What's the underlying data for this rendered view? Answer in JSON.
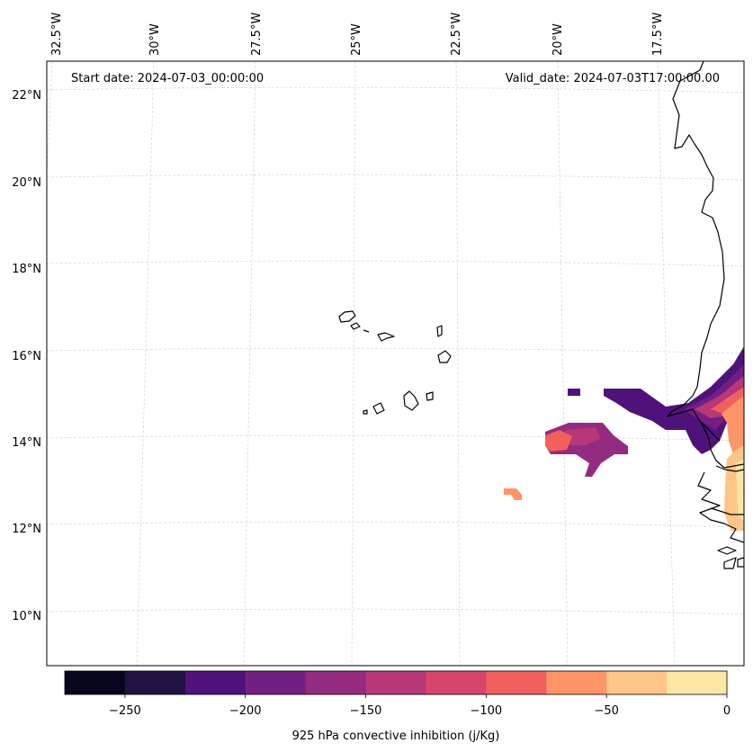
{
  "map": {
    "start_label": "Start date: 2024-07-03_00:00:00",
    "valid_label": "Valid_date: 2024-07-03T17:00:00.00",
    "lon_labels": [
      "32.5°W",
      "30°W",
      "27.5°W",
      "25°W",
      "22.5°W",
      "20°W",
      "17.5°W"
    ],
    "lat_labels": [
      "22°N",
      "20°N",
      "18°N",
      "16°N",
      "14°N",
      "12°N",
      "10°N"
    ],
    "gridline_color": "#d9d9d9",
    "coastline_color": "#000000"
  },
  "colorbar": {
    "label": "925 hPa convective inhibition (j/Kg)",
    "tick_labels": [
      "−250",
      "−200",
      "−150",
      "−100",
      "−50",
      "0"
    ],
    "bounds": [
      -275,
      -250,
      -225,
      -200,
      -175,
      -150,
      -125,
      -100,
      -75,
      -50,
      -25,
      0
    ],
    "colors": [
      "#07061c",
      "#211344",
      "#4f127b",
      "#721f81",
      "#932b80",
      "#b73779",
      "#d8456c",
      "#f1605d",
      "#fd9567",
      "#fec488",
      "#fde7a6"
    ]
  }
}
